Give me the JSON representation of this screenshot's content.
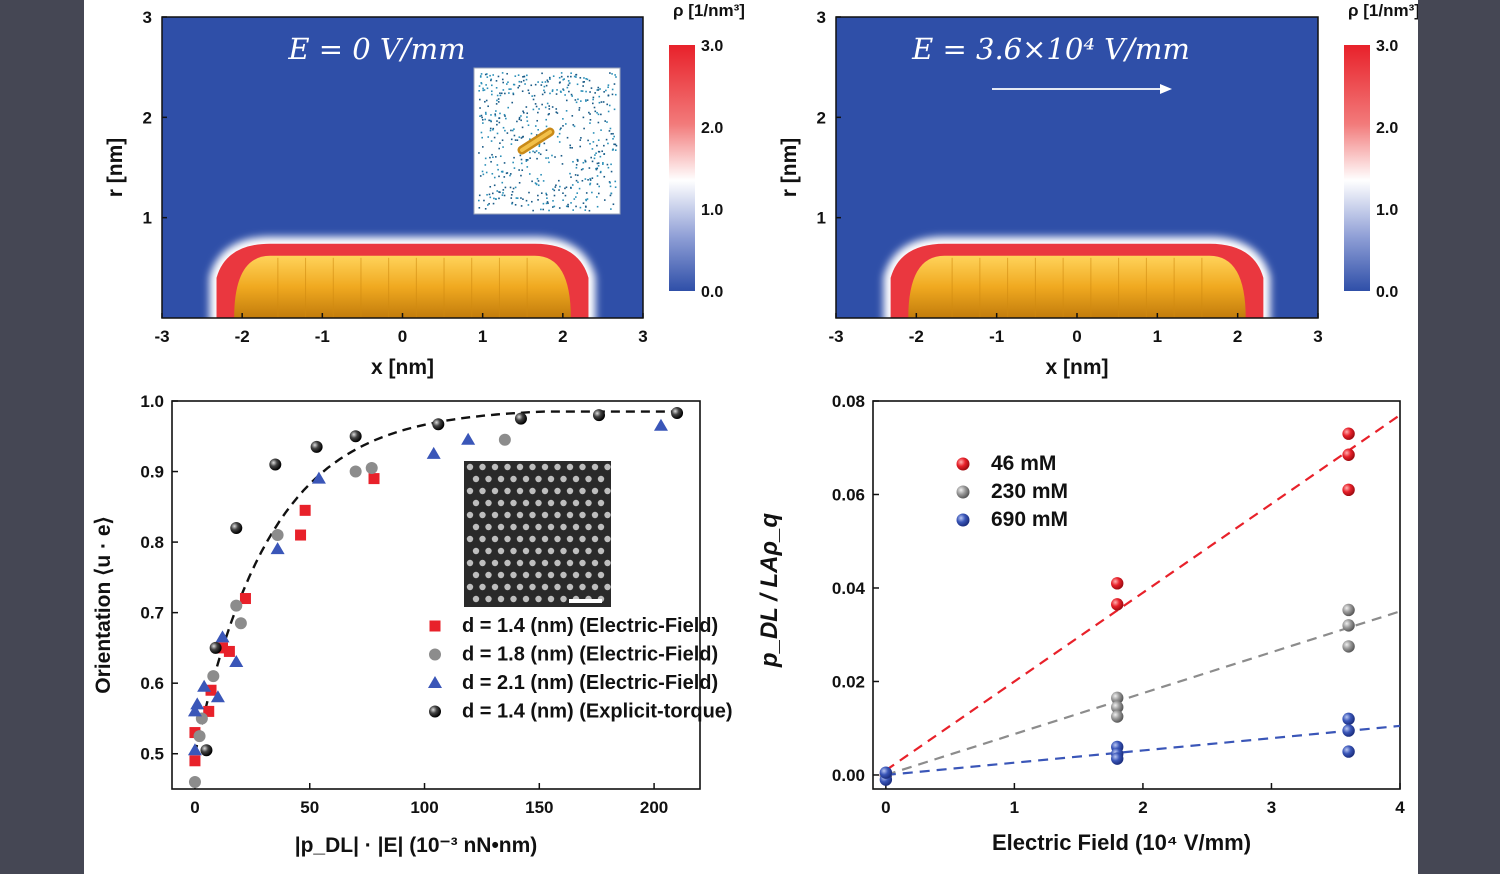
{
  "chart_data": [
    {
      "type": "heatmap",
      "annotation": "E = 0 V/mm",
      "xlabel": "x [nm]",
      "ylabel": "r [nm]",
      "xlim": [
        -3,
        3
      ],
      "ylim": [
        0,
        3
      ],
      "xticks": [
        "-3",
        "-2",
        "-1",
        "0",
        "1",
        "2",
        "3"
      ],
      "yticks": [
        "1",
        "2",
        "3"
      ],
      "colorbar": {
        "label": "ρ [1/nm³]",
        "ticks": [
          "3.0",
          "2.0",
          "1.0",
          "0.0"
        ],
        "range": [
          0,
          3
        ],
        "colors": {
          "low": "#2f4fa8",
          "mid": "#ffffff",
          "high": "#e8212a"
        }
      },
      "rod": {
        "x_range": [
          -2.1,
          2.1
        ],
        "height": 0.62,
        "color": "#f0a920"
      },
      "inset": "snapshot-image"
    },
    {
      "type": "heatmap",
      "annotation": "E = 3.6×10⁴ V/mm",
      "xlabel": "x [nm]",
      "ylabel": "r [nm]",
      "xlim": [
        -3,
        3
      ],
      "ylim": [
        0,
        3
      ],
      "xticks": [
        "-3",
        "-2",
        "-1",
        "0",
        "1",
        "2",
        "3"
      ],
      "yticks": [
        "1",
        "2",
        "3"
      ],
      "colorbar": {
        "label": "ρ [1/nm³]",
        "ticks": [
          "3.0",
          "2.0",
          "1.0",
          "0.0"
        ],
        "range": [
          0,
          3
        ]
      },
      "rod": {
        "x_range": [
          -2.1,
          2.1
        ],
        "height": 0.62,
        "color": "#f0a920"
      },
      "arrow": "field-direction-arrow"
    },
    {
      "type": "scatter",
      "xlabel": "|p_DL| · |E| (10⁻³ nN•nm)",
      "ylabel": "Orientation ⟨u · e⟩",
      "xlim": [
        -10,
        220
      ],
      "ylim": [
        0.45,
        1.0
      ],
      "xticks": [
        0,
        50,
        100,
        150,
        200
      ],
      "yticks": [
        0.5,
        0.6,
        0.7,
        0.8,
        0.9,
        1.0
      ],
      "legend_position": "bottom-right",
      "series": [
        {
          "name": "d = 1.4 (nm) (Electric-Field)",
          "marker": "square",
          "color": "#e8212a",
          "points": [
            [
              0,
              0.49
            ],
            [
              0,
              0.53
            ],
            [
              6,
              0.56
            ],
            [
              7,
              0.59
            ],
            [
              12,
              0.65
            ],
            [
              15,
              0.645
            ],
            [
              22,
              0.72
            ],
            [
              46,
              0.81
            ],
            [
              48,
              0.845
            ],
            [
              78,
              0.89
            ]
          ]
        },
        {
          "name": "d = 1.8 (nm) (Electric-Field)",
          "marker": "circle",
          "color": "#8c8c8c",
          "points": [
            [
              0,
              0.46
            ],
            [
              2,
              0.525
            ],
            [
              3,
              0.55
            ],
            [
              8,
              0.61
            ],
            [
              18,
              0.71
            ],
            [
              20,
              0.685
            ],
            [
              36,
              0.81
            ],
            [
              70,
              0.9
            ],
            [
              77,
              0.905
            ],
            [
              135,
              0.945
            ]
          ]
        },
        {
          "name": "d = 2.1 (nm) (Electric-Field)",
          "marker": "triangle",
          "color": "#3a56b8",
          "points": [
            [
              0,
              0.505
            ],
            [
              0,
              0.56
            ],
            [
              1,
              0.57
            ],
            [
              4,
              0.595
            ],
            [
              10,
              0.58
            ],
            [
              12,
              0.665
            ],
            [
              18,
              0.63
            ],
            [
              36,
              0.79
            ],
            [
              54,
              0.89
            ],
            [
              104,
              0.925
            ],
            [
              119,
              0.945
            ],
            [
              203,
              0.965
            ]
          ]
        },
        {
          "name": "d = 1.4 (nm) (Explicit-torque)",
          "marker": "sphere",
          "color": "#1e1e1e",
          "points": [
            [
              5,
              0.505
            ],
            [
              9,
              0.65
            ],
            [
              18,
              0.82
            ],
            [
              35,
              0.91
            ],
            [
              53,
              0.935
            ],
            [
              70,
              0.95
            ],
            [
              106,
              0.967
            ],
            [
              142,
              0.975
            ],
            [
              176,
              0.98
            ],
            [
              210,
              0.983
            ]
          ]
        }
      ],
      "fit_curve": {
        "style": "dashed",
        "color": "#111111",
        "x_range": [
          0,
          210
        ]
      },
      "inset": "sem-image"
    },
    {
      "type": "scatter",
      "xlabel": "Electric Field (10⁴ V/mm)",
      "ylabel": "p_DL / LAρ_q",
      "xlim": [
        -0.1,
        4
      ],
      "ylim": [
        -0.003,
        0.08
      ],
      "xticks": [
        0,
        1,
        2,
        3,
        4
      ],
      "yticks": [
        "0.00",
        "0.02",
        "0.04",
        "0.06",
        "0.08"
      ],
      "legend_position": "top-left",
      "series": [
        {
          "name": "46 mM",
          "color": "#e8212a",
          "points": [
            [
              0,
              0.0
            ],
            [
              1.8,
              0.041
            ],
            [
              1.8,
              0.0365
            ],
            [
              3.6,
              0.073
            ],
            [
              3.6,
              0.0685
            ],
            [
              3.6,
              0.061
            ]
          ],
          "fit": {
            "x_range": [
              0,
              4
            ],
            "y_range": [
              0.001,
              0.077
            ]
          }
        },
        {
          "name": "230 mM",
          "color": "#8c8c8c",
          "points": [
            [
              0,
              0.0
            ],
            [
              1.8,
              0.0165
            ],
            [
              1.8,
              0.0145
            ],
            [
              1.8,
              0.0125
            ],
            [
              3.6,
              0.0353
            ],
            [
              3.6,
              0.032
            ],
            [
              3.6,
              0.0275
            ]
          ],
          "fit": {
            "x_range": [
              0,
              4
            ],
            "y_range": [
              0.0,
              0.035
            ]
          }
        },
        {
          "name": "690 mM",
          "color": "#3a56b8",
          "points": [
            [
              0,
              -0.001
            ],
            [
              0,
              0.0005
            ],
            [
              1.8,
              0.006
            ],
            [
              1.8,
              0.0045
            ],
            [
              1.8,
              0.0035
            ],
            [
              3.6,
              0.012
            ],
            [
              3.6,
              0.0095
            ],
            [
              3.6,
              0.005
            ]
          ],
          "fit": {
            "x_range": [
              0,
              4
            ],
            "y_range": [
              0.0,
              0.0105
            ]
          }
        }
      ]
    }
  ]
}
